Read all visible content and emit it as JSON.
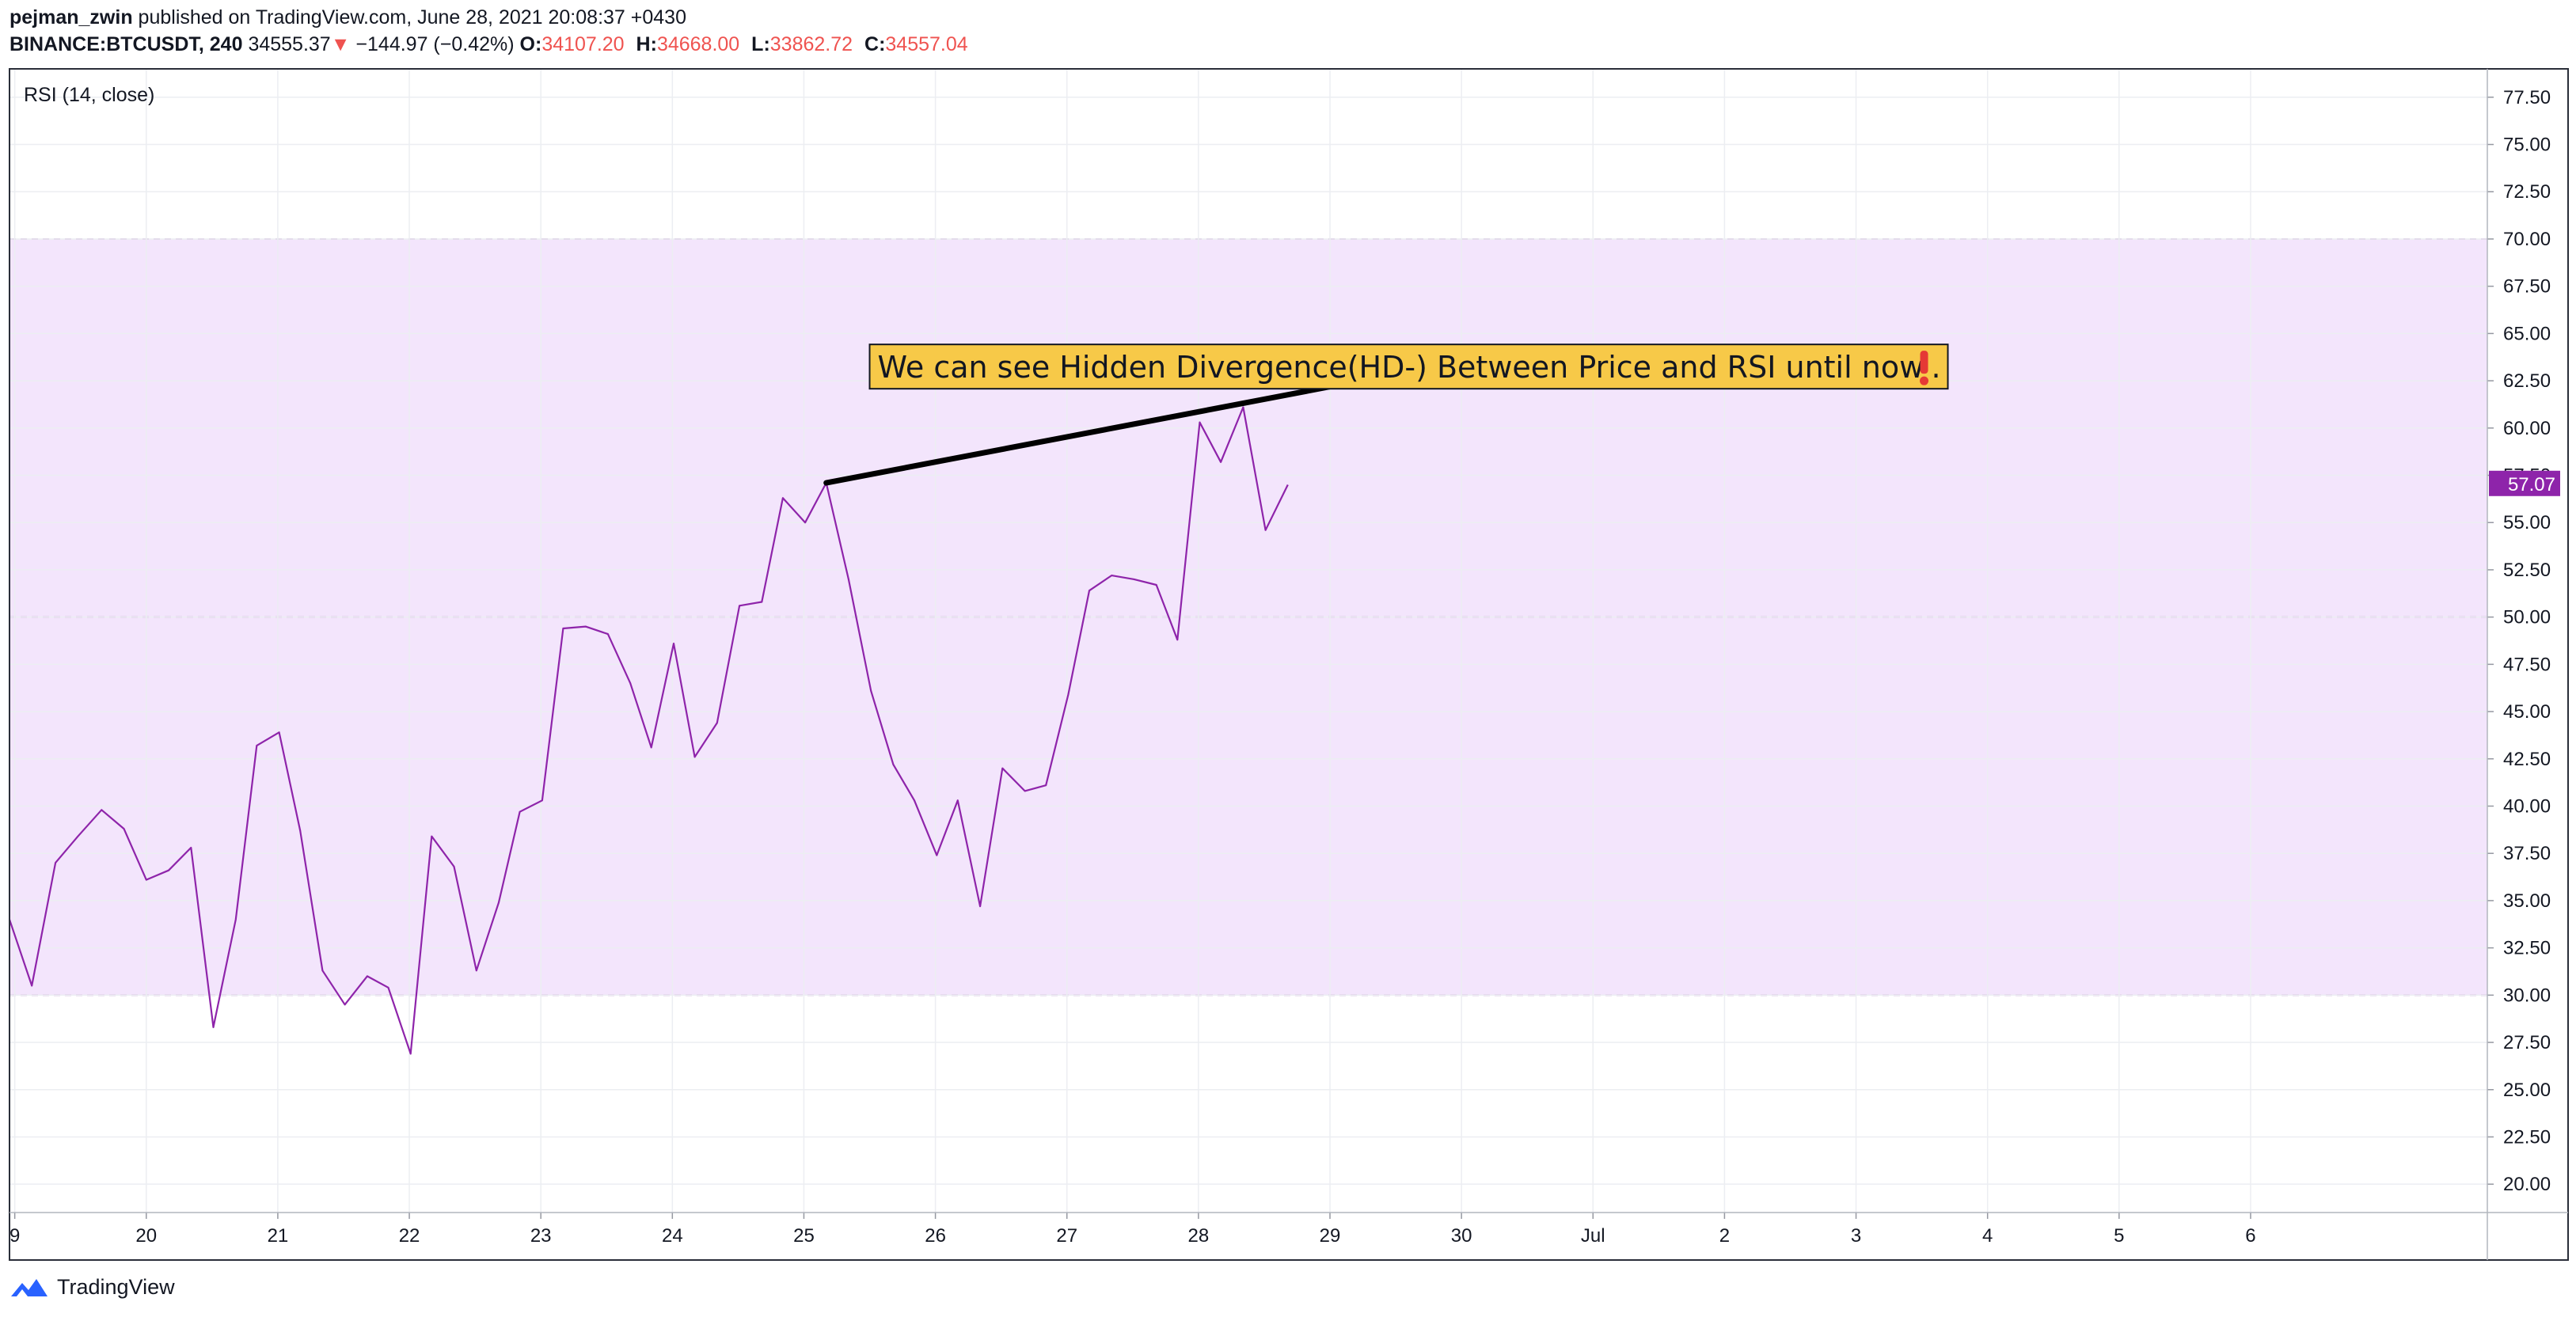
{
  "header": {
    "author": "pejman_zwin",
    "published_text": "published on TradingView.com, June 28, 2021 20:08:37 +0430",
    "symbol": "BINANCE:BTCUSDT, 240",
    "last_price": "34555.37",
    "change_arrow": "▼",
    "change": "−144.97 (−0.42%)",
    "open_label": "O:",
    "open": "34107.20",
    "high_label": "H:",
    "high": "34668.00",
    "low_label": "L:",
    "low": "33862.72",
    "close_label": "C:",
    "close": "34557.04"
  },
  "footer": {
    "brand": "TradingView",
    "logo_icon": "tradingview-logo-icon"
  },
  "chart_data": {
    "type": "line",
    "indicator_label": "RSI (14, close)",
    "x_ticks": [
      "9",
      "20",
      "21",
      "22",
      "23",
      "24",
      "25",
      "26",
      "27",
      "28",
      "29",
      "30",
      "Jul",
      "2",
      "3",
      "4",
      "5",
      "6"
    ],
    "x_tick_days": [
      19,
      20,
      21,
      22,
      23,
      24,
      25,
      26,
      27,
      28,
      29,
      30,
      31,
      32,
      33,
      34,
      35,
      36
    ],
    "x_range_days": [
      18.96,
      37.8
    ],
    "y_ticks": [
      "20.00",
      "22.50",
      "25.00",
      "27.50",
      "30.00",
      "32.50",
      "35.00",
      "37.50",
      "40.00",
      "42.50",
      "45.00",
      "47.50",
      "50.00",
      "52.50",
      "55.00",
      "57.50",
      "60.00",
      "62.50",
      "65.00",
      "67.50",
      "70.00",
      "72.50",
      "75.00",
      "77.50"
    ],
    "ylim": [
      18.5,
      79.0
    ],
    "band": {
      "lower": 30,
      "upper": 70,
      "middle": 50,
      "fill": "#f3e5fc",
      "line_color": "#c9a8d6"
    },
    "series": [
      {
        "color": "#8e24aa",
        "x_days": [
          18.96,
          19.13,
          19.31,
          19.48,
          19.66,
          19.83,
          20.0,
          20.17,
          20.34,
          20.51,
          20.68,
          20.84,
          21.01,
          21.17,
          21.34,
          21.51,
          21.68,
          21.84,
          22.01,
          22.17,
          22.34,
          22.51,
          22.68,
          22.84,
          23.01,
          23.17,
          23.34,
          23.51,
          23.68,
          23.84,
          24.01,
          24.17,
          24.34,
          24.51,
          24.68,
          24.84,
          25.01,
          25.17,
          25.34,
          25.51,
          25.68,
          25.84,
          26.01,
          26.17,
          26.34,
          26.51,
          26.68,
          26.84,
          27.01,
          27.17,
          27.34,
          27.51,
          27.68,
          27.84,
          28.01,
          28.17,
          28.34,
          28.51,
          28.68
        ],
        "values": [
          34.0,
          30.5,
          37.0,
          38.4,
          39.8,
          38.8,
          36.1,
          36.6,
          37.8,
          28.3,
          34.0,
          43.2,
          43.9,
          38.7,
          31.3,
          29.5,
          31.0,
          30.4,
          26.9,
          38.4,
          36.8,
          31.3,
          34.9,
          39.7,
          40.3,
          49.4,
          49.5,
          49.1,
          46.5,
          43.1,
          48.6,
          42.6,
          44.4,
          50.6,
          50.8,
          56.3,
          55.0,
          57.1,
          52.0,
          46.1,
          42.2,
          40.3,
          37.4,
          40.3,
          34.7,
          42.0,
          40.8,
          41.1,
          45.9,
          51.4,
          52.2,
          52.0,
          51.7,
          48.8,
          60.3,
          58.2,
          61.1,
          54.6,
          57.0
        ]
      }
    ],
    "last_value_label": "57.07",
    "last_value": 57.07,
    "trendline": {
      "color": "#000000",
      "start": {
        "day": 25.17,
        "value": 57.1
      },
      "end": {
        "day": 29.16,
        "value": 62.4
      }
    },
    "annotation": {
      "text": "We can see Hidden Divergence(HD-) Between Price and RSI until now",
      "icon": "exclamation-icon",
      "tail": ".",
      "bg": "#f7c948",
      "anchor_day": 25.5,
      "anchor_value": 63.25
    }
  }
}
